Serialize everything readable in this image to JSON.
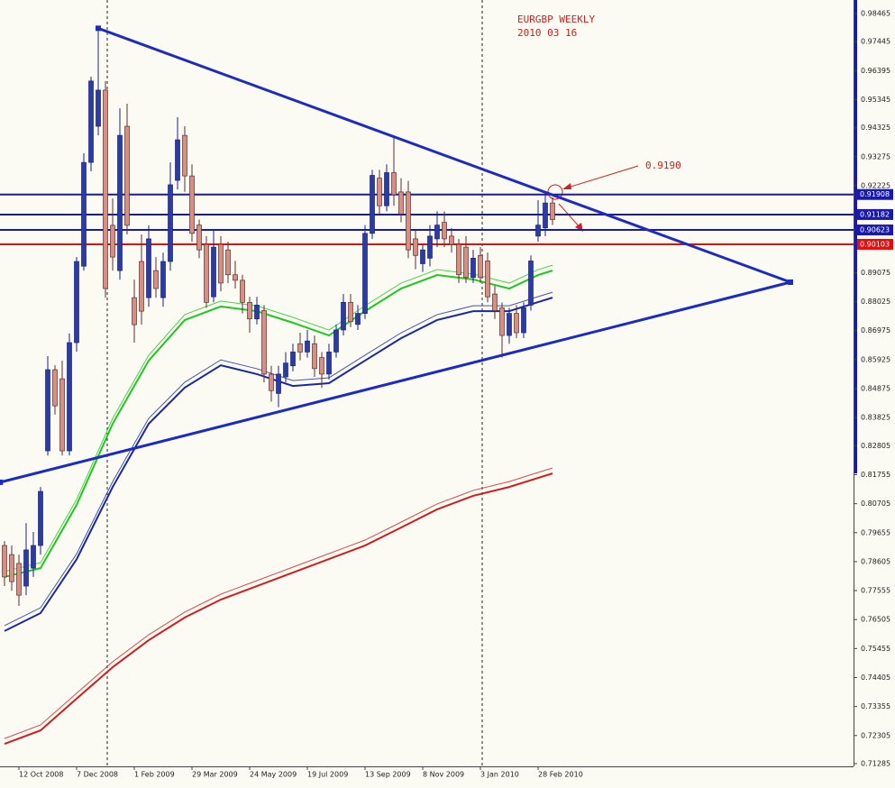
{
  "chart_data": {
    "type": "candlestick",
    "title": "EURGBP WEEKLY",
    "subtitle": "2010 03 16",
    "annotation": "0.9190",
    "up_color": "#2b3da0",
    "down_color": "#d68f82",
    "categories": [
      null,
      null,
      "12 Oct 2008",
      null,
      null,
      null,
      null,
      null,
      null,
      null,
      "7 Dec 2008",
      null,
      null,
      null,
      null,
      null,
      null,
      null,
      "1 Feb 2009",
      null,
      null,
      null,
      null,
      null,
      null,
      null,
      "29 Mar 2009",
      null,
      null,
      null,
      null,
      null,
      null,
      null,
      "24 May 2009",
      null,
      null,
      null,
      null,
      null,
      null,
      null,
      "19 Jul 2009",
      null,
      null,
      null,
      null,
      null,
      null,
      null,
      "13 Sep 2009",
      null,
      null,
      null,
      null,
      null,
      null,
      null,
      "8 Nov 2009",
      null,
      null,
      null,
      null,
      null,
      null,
      null,
      "3 Jan 2010",
      null,
      null,
      null,
      null,
      null,
      null,
      null,
      "28 Feb 2010",
      null,
      null
    ],
    "ohlc": [
      [
        0.7919,
        0.7935,
        0.7772,
        0.7805
      ],
      [
        0.7886,
        0.7919,
        0.7755,
        0.7788
      ],
      [
        0.7854,
        0.7886,
        0.77,
        0.7739
      ],
      [
        0.7772,
        0.8,
        0.7739,
        0.7903
      ],
      [
        0.7837,
        0.7968,
        0.7805,
        0.7919
      ],
      [
        0.7919,
        0.8131,
        0.7886,
        0.8115
      ],
      [
        0.8262,
        0.8605,
        0.8245,
        0.8556
      ],
      [
        0.8556,
        0.8572,
        0.8393,
        0.8425
      ],
      [
        0.8523,
        0.8589,
        0.8245,
        0.8262
      ],
      [
        0.8262,
        0.8687,
        0.8245,
        0.8654
      ],
      [
        0.8654,
        0.8964,
        0.8621,
        0.8948
      ],
      [
        0.8931,
        0.934,
        0.8915,
        0.9307
      ],
      [
        0.9307,
        0.9618,
        0.9275,
        0.9602
      ],
      [
        0.9438,
        0.9798,
        0.9405,
        0.9569
      ],
      [
        0.9569,
        0.9602,
        0.8817,
        0.885
      ],
      [
        0.9079,
        0.9177,
        0.8915,
        0.8964
      ],
      [
        0.8915,
        0.9503,
        0.8882,
        0.9405
      ],
      [
        0.9438,
        0.952,
        0.9046,
        0.9079
      ],
      [
        0.8817,
        0.8882,
        0.8654,
        0.8719
      ],
      [
        0.8948,
        0.9046,
        0.8719,
        0.8768
      ],
      [
        0.8817,
        0.9079,
        0.8784,
        0.903
      ],
      [
        0.8915,
        0.8964,
        0.8817,
        0.885
      ],
      [
        0.8817,
        0.898,
        0.8784,
        0.8948
      ],
      [
        0.8948,
        0.9307,
        0.8915,
        0.9226
      ],
      [
        0.9242,
        0.9471,
        0.9209,
        0.9389
      ],
      [
        0.9405,
        0.9438,
        0.92,
        0.9258
      ],
      [
        0.9258,
        0.93,
        0.902,
        0.905
      ],
      [
        0.908,
        0.91,
        0.896,
        0.899
      ],
      [
        0.901,
        0.904,
        0.878,
        0.88
      ],
      [
        0.882,
        0.906,
        0.88,
        0.9
      ],
      [
        0.901,
        0.904,
        0.884,
        0.887
      ],
      [
        0.899,
        0.902,
        0.887,
        0.89
      ],
      [
        0.89,
        0.895,
        0.885,
        0.888
      ],
      [
        0.888,
        0.89,
        0.876,
        0.88
      ],
      [
        0.88,
        0.882,
        0.869,
        0.874
      ],
      [
        0.874,
        0.882,
        0.872,
        0.879
      ],
      [
        0.877,
        0.879,
        0.851,
        0.854
      ],
      [
        0.854,
        0.857,
        0.844,
        0.848
      ],
      [
        0.847,
        0.857,
        0.842,
        0.854
      ],
      [
        0.853,
        0.862,
        0.851,
        0.858
      ],
      [
        0.857,
        0.865,
        0.855,
        0.862
      ],
      [
        0.865,
        0.869,
        0.859,
        0.862
      ],
      [
        0.862,
        0.87,
        0.86,
        0.866
      ],
      [
        0.865,
        0.868,
        0.853,
        0.856
      ],
      [
        0.86,
        0.862,
        0.849,
        0.854
      ],
      [
        0.854,
        0.865,
        0.852,
        0.862
      ],
      [
        0.862,
        0.872,
        0.86,
        0.87
      ],
      [
        0.87,
        0.883,
        0.868,
        0.88
      ],
      [
        0.88,
        0.883,
        0.871,
        0.873
      ],
      [
        0.872,
        0.879,
        0.87,
        0.876
      ],
      [
        0.876,
        0.908,
        0.874,
        0.905
      ],
      [
        0.905,
        0.928,
        0.903,
        0.926
      ],
      [
        0.925,
        0.928,
        0.912,
        0.915
      ],
      [
        0.915,
        0.93,
        0.913,
        0.927
      ],
      [
        0.927,
        0.94,
        0.915,
        0.919
      ],
      [
        0.92,
        0.925,
        0.909,
        0.912
      ],
      [
        0.92,
        0.924,
        0.896,
        0.899
      ],
      [
        0.903,
        0.906,
        0.892,
        0.897
      ],
      [
        0.894,
        0.901,
        0.891,
        0.899
      ],
      [
        0.896,
        0.908,
        0.893,
        0.904
      ],
      [
        0.903,
        0.913,
        0.9,
        0.908
      ],
      [
        0.909,
        0.913,
        0.9,
        0.903
      ],
      [
        0.904,
        0.907,
        0.898,
        0.901
      ],
      [
        0.901,
        0.903,
        0.887,
        0.89
      ],
      [
        0.9,
        0.904,
        0.887,
        0.889
      ],
      [
        0.889,
        0.899,
        0.887,
        0.896
      ],
      [
        0.897,
        0.9,
        0.887,
        0.889
      ],
      [
        0.895,
        0.898,
        0.88,
        0.882
      ],
      [
        0.883,
        0.886,
        0.874,
        0.877
      ],
      [
        0.878,
        0.88,
        0.86,
        0.868
      ],
      [
        0.868,
        0.878,
        0.865,
        0.876
      ],
      [
        0.876,
        0.879,
        0.867,
        0.869
      ],
      [
        0.869,
        0.88,
        0.867,
        0.878
      ],
      [
        0.879,
        0.897,
        0.877,
        0.895
      ],
      [
        0.904,
        0.917,
        0.902,
        0.908
      ],
      [
        0.907,
        0.919,
        0.904,
        0.916
      ],
      [
        0.916,
        0.918,
        0.908,
        0.91
      ]
    ],
    "moving_averages": [
      {
        "color": "#1fc81f",
        "x": [
          0,
          5,
          10,
          15,
          20,
          25,
          30,
          35,
          40,
          45,
          50,
          55,
          60,
          65,
          70,
          74,
          76
        ],
        "values": [
          0.7805,
          0.7837,
          0.8066,
          0.836,
          0.8589,
          0.8736,
          0.8785,
          0.8768,
          0.8726,
          0.868,
          0.8768,
          0.885,
          0.8899,
          0.8883,
          0.885,
          0.8899,
          0.8915
        ]
      },
      {
        "color": "#1a2a9e",
        "x": [
          0,
          5,
          10,
          15,
          20,
          25,
          30,
          35,
          40,
          45,
          50,
          55,
          60,
          65,
          70,
          74,
          76
        ],
        "values": [
          0.7609,
          0.7674,
          0.7869,
          0.8131,
          0.836,
          0.8491,
          0.8572,
          0.854,
          0.8497,
          0.8507,
          0.8589,
          0.867,
          0.8736,
          0.8768,
          0.8768,
          0.8801,
          0.8817
        ]
      },
      {
        "color": "#cc1f1f",
        "x": [
          0,
          5,
          10,
          15,
          20,
          25,
          30,
          35,
          40,
          45,
          50,
          55,
          60,
          65,
          70,
          74,
          76
        ],
        "values": [
          0.72,
          0.7249,
          0.7364,
          0.7478,
          0.7576,
          0.7658,
          0.7723,
          0.7772,
          0.7821,
          0.787,
          0.7919,
          0.7984,
          0.805,
          0.8099,
          0.8131,
          0.8164,
          0.818
        ]
      }
    ],
    "trendlines": [
      {
        "color": "#1c2bc0",
        "x": [
          13,
          109
        ],
        "values": [
          0.9793,
          0.8873
        ]
      },
      {
        "color": "#1c2bc0",
        "x": [
          -0.6,
          109
        ],
        "values": [
          0.8148,
          0.8873
        ]
      }
    ],
    "levels": [
      {
        "value": 0.91908,
        "color": "#1a1aa8"
      },
      {
        "value": 0.91182,
        "color": "#1a1aa8"
      },
      {
        "value": 0.90623,
        "color": "#1a1aa8"
      },
      {
        "value": 0.90103,
        "color": "#e01010"
      }
    ],
    "xlim": [
      -0.625,
      117.75
    ],
    "ylim": [
      0.71285,
      0.98465
    ],
    "yticks": [
      0.98465,
      0.97445,
      0.96395,
      0.95345,
      0.94325,
      0.93275,
      0.92225,
      0.89075,
      0.88025,
      0.86975,
      0.85925,
      0.84875,
      0.83825,
      0.82805,
      0.81755,
      0.80705,
      0.79655,
      0.78605,
      0.77555,
      0.76505,
      0.75455,
      0.74405,
      0.73355,
      0.72305,
      0.71285
    ]
  }
}
